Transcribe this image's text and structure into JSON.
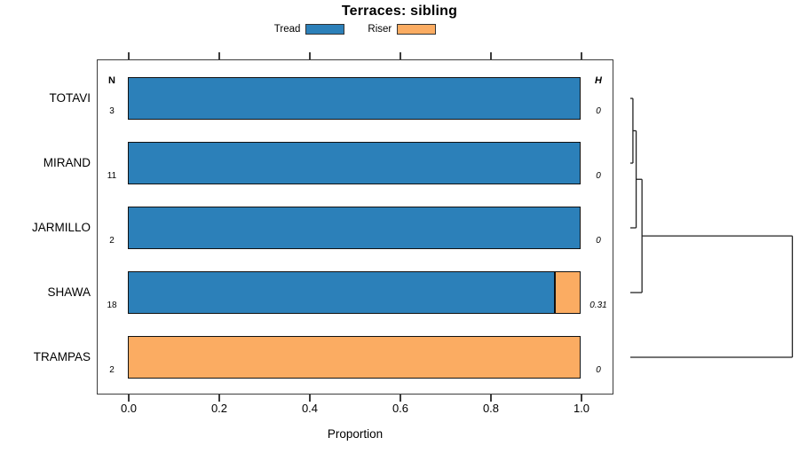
{
  "chart_data": {
    "type": "bar",
    "orientation": "horizontal",
    "stacked": true,
    "title": "Terraces: sibling",
    "xlabel": "Proportion",
    "xlim": [
      0,
      1
    ],
    "x_ticks": [
      0.0,
      0.2,
      0.4,
      0.6,
      0.8,
      1.0
    ],
    "x_tick_labels": [
      "0.0",
      "0.2",
      "0.4",
      "0.6",
      "0.8",
      "1.0"
    ],
    "grid": false,
    "legend_position": "top-center",
    "legend": [
      {
        "name": "Tread",
        "color": "#2C80B9"
      },
      {
        "name": "Riser",
        "color": "#FBAC62"
      }
    ],
    "left_annotation_header": "N",
    "right_annotation_header": "H",
    "rows": [
      {
        "category": "TOTAVI",
        "n": "3",
        "h": "0",
        "values": [
          1.0,
          0
        ]
      },
      {
        "category": "MIRAND",
        "n": "11",
        "h": "0",
        "values": [
          1.0,
          0
        ]
      },
      {
        "category": "JARMILLO",
        "n": "2",
        "h": "0",
        "values": [
          1.0,
          0
        ]
      },
      {
        "category": "SHAWA",
        "n": "18",
        "h": "0.31",
        "values": [
          0.944,
          0.056
        ]
      },
      {
        "category": "TRAMPAS",
        "n": "2",
        "h": "0",
        "values": [
          0,
          1.0
        ]
      }
    ],
    "dendrogram": {
      "leaf_order": [
        "TOTAVI",
        "MIRAND",
        "JARMILLO",
        "SHAWA",
        "TRAMPAS"
      ],
      "height_range": [
        0,
        1
      ],
      "merges": [
        {
          "a": -1,
          "b": -2,
          "height": 0.016
        },
        {
          "a": 1,
          "b": -3,
          "height": 0.036
        },
        {
          "a": 2,
          "b": -4,
          "height": 0.072
        },
        {
          "a": 3,
          "b": -5,
          "height": 1.0
        }
      ]
    },
    "colors": {
      "bar_border": "#111111",
      "plot_border": "#3c3c3c",
      "dendrogram_line": "#222222",
      "text": "#000000"
    }
  }
}
